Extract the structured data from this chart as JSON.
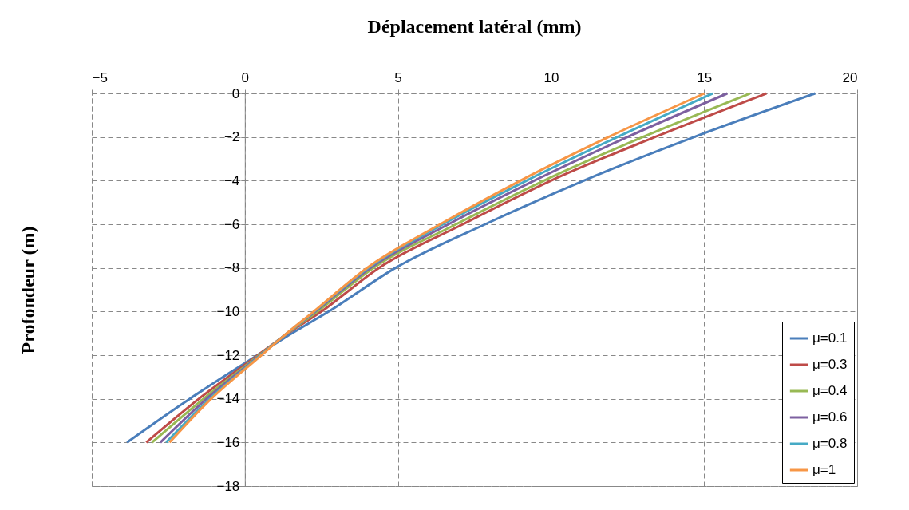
{
  "chart_data": {
    "type": "line",
    "title": "Déplacement latéral (mm)",
    "ylabel": "Profondeur (m)",
    "series": [
      {
        "name": "μ=0.1",
        "color": "#4a7ebb",
        "x": [
          18.63,
          14.68,
          11.07,
          7.85,
          4.92,
          2.74,
          1.3,
          0.41,
          -1.8,
          -3.85
        ],
        "values": [
          0,
          -2,
          -4,
          -6,
          -8,
          -10,
          -11.2,
          -12,
          -14,
          -16
        ]
      },
      {
        "name": "μ=0.3",
        "color": "#be4b48",
        "x": [
          17.04,
          13.4,
          10.0,
          7.12,
          4.38,
          2.5,
          1.2,
          0.43,
          -1.5,
          -3.22
        ],
        "values": [
          0,
          -2,
          -4,
          -6,
          -8,
          -10,
          -11.2,
          -12,
          -14,
          -16
        ]
      },
      {
        "name": "μ=0.4",
        "color": "#98b954",
        "x": [
          16.5,
          13.0,
          9.77,
          6.9,
          4.2,
          2.37,
          1.2,
          0.47,
          -1.35,
          -3.03
        ],
        "values": [
          0,
          -2,
          -4,
          -6,
          -8,
          -10,
          -11.2,
          -12,
          -14,
          -16
        ]
      },
      {
        "name": "μ=0.6",
        "color": "#7d60a0",
        "x": [
          15.76,
          12.5,
          9.45,
          6.65,
          4.1,
          2.3,
          1.2,
          0.5,
          -1.25,
          -2.76
        ],
        "values": [
          0,
          -2,
          -4,
          -6,
          -8,
          -10,
          -11.2,
          -12,
          -14,
          -16
        ]
      },
      {
        "name": "μ=0.8",
        "color": "#46aac5",
        "x": [
          15.28,
          12.17,
          9.2,
          6.47,
          4.03,
          2.27,
          1.2,
          0.52,
          -1.15,
          -2.57
        ],
        "values": [
          0,
          -2,
          -4,
          -6,
          -8,
          -10,
          -11.2,
          -12,
          -14,
          -16
        ]
      },
      {
        "name": "μ=1",
        "color": "#f79646",
        "x": [
          15.01,
          11.88,
          9.0,
          6.38,
          3.99,
          2.25,
          1.2,
          0.54,
          -1.1,
          -2.46
        ],
        "values": [
          0,
          -2,
          -4,
          -6,
          -8,
          -10,
          -11.2,
          -12,
          -14,
          -16
        ]
      }
    ],
    "xlim": [
      -5,
      20
    ],
    "xticks": [
      -5,
      0,
      5,
      10,
      15,
      20
    ],
    "ylim": [
      -18,
      0
    ],
    "yticks": [
      0,
      -2,
      -4,
      -6,
      -8,
      -10,
      -12,
      -14,
      -16,
      -18
    ],
    "grid": true,
    "legend": "bottom right",
    "marker": "none",
    "line_style": "solid"
  }
}
